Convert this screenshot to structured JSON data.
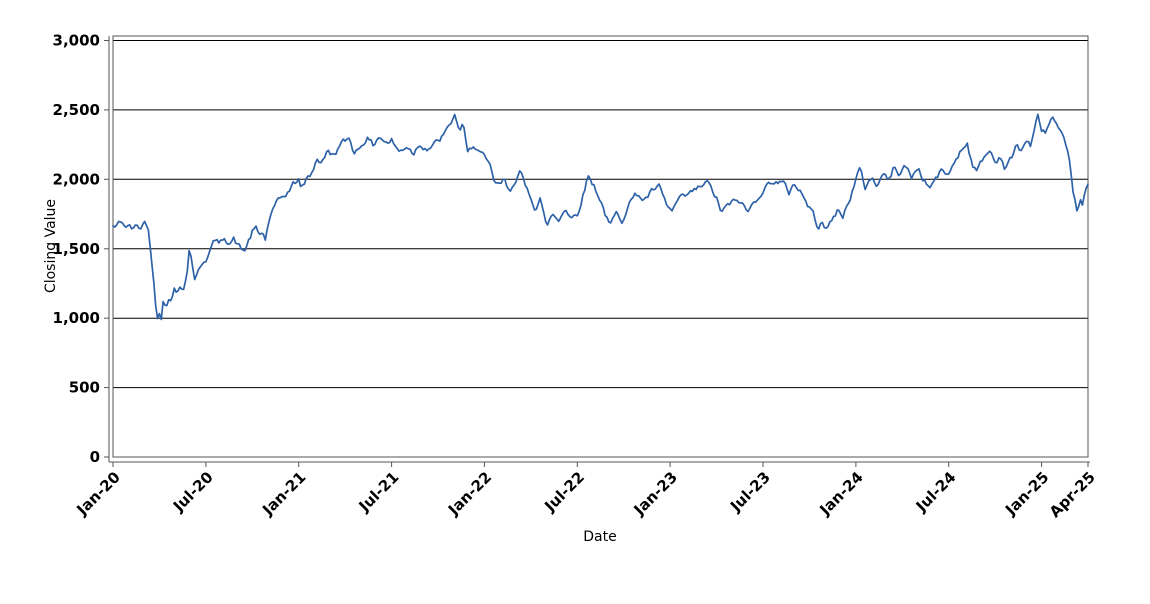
{
  "chart_data": {
    "type": "line",
    "title": "",
    "xlabel": "Date",
    "ylabel": "Closing Value",
    "legend": "none",
    "grid": "horizontal-only",
    "x_unit": "months-since-Jan-2020",
    "x_range": [
      0,
      63
    ],
    "ylim": [
      0,
      3050
    ],
    "y_ticks": [
      0,
      500,
      1000,
      1500,
      2000,
      2500,
      3000
    ],
    "y_tick_labels": [
      "0",
      "500",
      "1,000",
      "1,500",
      "2,000",
      "2,500",
      "3,000"
    ],
    "x_ticks": [
      {
        "label": "Jan-20",
        "t": 0
      },
      {
        "label": "Jul-20",
        "t": 6
      },
      {
        "label": "Jan-21",
        "t": 12
      },
      {
        "label": "Jul-21",
        "t": 18
      },
      {
        "label": "Jan-22",
        "t": 24
      },
      {
        "label": "Jul-22",
        "t": 30
      },
      {
        "label": "Jan-23",
        "t": 36
      },
      {
        "label": "Jul-23",
        "t": 42
      },
      {
        "label": "Jan-24",
        "t": 48
      },
      {
        "label": "Jul-24",
        "t": 54
      },
      {
        "label": "Jan-25",
        "t": 60
      },
      {
        "label": "Apr-25",
        "t": 63
      }
    ],
    "colors": {
      "line": "#2e62a8",
      "grid": "#000000",
      "axis": "#555555",
      "text": "#000000",
      "background": "#ffffff"
    },
    "series": [
      {
        "name": "Closing Value",
        "color": "#2e62a8",
        "anchors": [
          [
            0.0,
            1665
          ],
          [
            0.2,
            1650
          ],
          [
            0.45,
            1702
          ],
          [
            0.7,
            1680
          ],
          [
            0.9,
            1645
          ],
          [
            1.1,
            1668
          ],
          [
            1.3,
            1635
          ],
          [
            1.55,
            1670
          ],
          [
            1.8,
            1650
          ],
          [
            2.05,
            1692
          ],
          [
            2.25,
            1680
          ],
          [
            2.4,
            1510
          ],
          [
            2.55,
            1366
          ],
          [
            2.7,
            1180
          ],
          [
            2.85,
            1005
          ],
          [
            3.0,
            1060
          ],
          [
            3.1,
            1000
          ],
          [
            3.25,
            1130
          ],
          [
            3.4,
            1080
          ],
          [
            3.6,
            1155
          ],
          [
            3.75,
            1115
          ],
          [
            3.95,
            1205
          ],
          [
            4.15,
            1180
          ],
          [
            4.35,
            1255
          ],
          [
            4.55,
            1215
          ],
          [
            4.75,
            1295
          ],
          [
            4.95,
            1520
          ],
          [
            5.1,
            1415
          ],
          [
            5.3,
            1260
          ],
          [
            5.6,
            1370
          ],
          [
            5.85,
            1415
          ],
          [
            6.1,
            1440
          ],
          [
            6.35,
            1505
          ],
          [
            6.6,
            1565
          ],
          [
            6.9,
            1530
          ],
          [
            7.2,
            1590
          ],
          [
            7.5,
            1542
          ],
          [
            7.8,
            1568
          ],
          [
            8.1,
            1522
          ],
          [
            8.45,
            1476
          ],
          [
            8.75,
            1552
          ],
          [
            9.05,
            1630
          ],
          [
            9.25,
            1642
          ],
          [
            9.45,
            1592
          ],
          [
            9.65,
            1622
          ],
          [
            9.85,
            1565
          ],
          [
            10.15,
            1742
          ],
          [
            10.45,
            1800
          ],
          [
            10.75,
            1850
          ],
          [
            11.05,
            1882
          ],
          [
            11.4,
            1922
          ],
          [
            11.7,
            1972
          ],
          [
            12.0,
            1992
          ],
          [
            12.2,
            1935
          ],
          [
            12.5,
            2002
          ],
          [
            12.75,
            2030
          ],
          [
            13.2,
            2152
          ],
          [
            13.5,
            2115
          ],
          [
            13.9,
            2210
          ],
          [
            14.2,
            2172
          ],
          [
            14.8,
            2258
          ],
          [
            15.3,
            2300
          ],
          [
            15.6,
            2188
          ],
          [
            15.9,
            2230
          ],
          [
            16.4,
            2300
          ],
          [
            16.8,
            2245
          ],
          [
            17.2,
            2315
          ],
          [
            17.7,
            2258
          ],
          [
            18.0,
            2282
          ],
          [
            18.5,
            2195
          ],
          [
            19.0,
            2245
          ],
          [
            19.4,
            2188
          ],
          [
            19.8,
            2258
          ],
          [
            20.3,
            2222
          ],
          [
            20.7,
            2245
          ],
          [
            21.1,
            2282
          ],
          [
            21.6,
            2352
          ],
          [
            21.9,
            2425
          ],
          [
            22.1,
            2458
          ],
          [
            22.4,
            2352
          ],
          [
            22.65,
            2390
          ],
          [
            22.9,
            2172
          ],
          [
            23.3,
            2258
          ],
          [
            23.7,
            2195
          ],
          [
            24.0,
            2152
          ],
          [
            24.35,
            2088
          ],
          [
            24.6,
            1992
          ],
          [
            24.9,
            1952
          ],
          [
            25.3,
            1992
          ],
          [
            25.6,
            1902
          ],
          [
            26.0,
            2002
          ],
          [
            26.3,
            2060
          ],
          [
            26.6,
            1952
          ],
          [
            26.9,
            1898
          ],
          [
            27.3,
            1792
          ],
          [
            27.6,
            1870
          ],
          [
            28.0,
            1655
          ],
          [
            28.4,
            1752
          ],
          [
            28.8,
            1702
          ],
          [
            29.2,
            1800
          ],
          [
            29.6,
            1722
          ],
          [
            30.0,
            1752
          ],
          [
            30.4,
            1900
          ],
          [
            30.7,
            2028
          ],
          [
            31.1,
            1952
          ],
          [
            31.5,
            1852
          ],
          [
            32.1,
            1658
          ],
          [
            32.5,
            1752
          ],
          [
            32.9,
            1702
          ],
          [
            33.3,
            1832
          ],
          [
            33.9,
            1898
          ],
          [
            34.3,
            1850
          ],
          [
            34.9,
            1920
          ],
          [
            35.3,
            1942
          ],
          [
            35.7,
            1828
          ],
          [
            36.1,
            1762
          ],
          [
            36.5,
            1848
          ],
          [
            37.1,
            1882
          ],
          [
            37.9,
            1942
          ],
          [
            38.4,
            1978
          ],
          [
            38.8,
            1902
          ],
          [
            39.05,
            1848
          ],
          [
            39.3,
            1762
          ],
          [
            39.9,
            1828
          ],
          [
            40.5,
            1848
          ],
          [
            41.0,
            1762
          ],
          [
            41.8,
            1898
          ],
          [
            42.6,
            1992
          ],
          [
            43.3,
            1970
          ],
          [
            43.7,
            1898
          ],
          [
            43.95,
            1978
          ],
          [
            44.4,
            1920
          ],
          [
            44.8,
            1832
          ],
          [
            45.2,
            1762
          ],
          [
            45.55,
            1658
          ],
          [
            45.8,
            1722
          ],
          [
            46.1,
            1633
          ],
          [
            46.45,
            1702
          ],
          [
            46.8,
            1778
          ],
          [
            47.15,
            1728
          ],
          [
            47.55,
            1848
          ],
          [
            47.9,
            1956
          ],
          [
            48.25,
            2078
          ],
          [
            48.6,
            1942
          ],
          [
            49.0,
            2015
          ],
          [
            49.4,
            1956
          ],
          [
            49.8,
            2050
          ],
          [
            50.1,
            1978
          ],
          [
            50.45,
            2086
          ],
          [
            50.8,
            2043
          ],
          [
            51.2,
            2100
          ],
          [
            51.6,
            2015
          ],
          [
            52.0,
            2086
          ],
          [
            52.4,
            1992
          ],
          [
            52.8,
            1942
          ],
          [
            53.2,
            2015
          ],
          [
            53.6,
            2064
          ],
          [
            54.0,
            2030
          ],
          [
            54.3,
            2115
          ],
          [
            54.65,
            2186
          ],
          [
            55.2,
            2266
          ],
          [
            55.5,
            2121
          ],
          [
            55.8,
            2050
          ],
          [
            56.2,
            2150
          ],
          [
            56.7,
            2208
          ],
          [
            57.0,
            2121
          ],
          [
            57.35,
            2172
          ],
          [
            57.6,
            2086
          ],
          [
            58.1,
            2158
          ],
          [
            58.4,
            2245
          ],
          [
            58.7,
            2210
          ],
          [
            59.0,
            2282
          ],
          [
            59.3,
            2245
          ],
          [
            59.75,
            2448
          ],
          [
            59.95,
            2366
          ],
          [
            60.2,
            2337
          ],
          [
            60.7,
            2448
          ],
          [
            61.1,
            2352
          ],
          [
            61.4,
            2282
          ],
          [
            61.65,
            2186
          ],
          [
            61.85,
            2086
          ],
          [
            62.1,
            1870
          ],
          [
            62.3,
            1777
          ],
          [
            62.5,
            1848
          ],
          [
            62.65,
            1798
          ],
          [
            62.85,
            1925
          ],
          [
            63.0,
            1965
          ]
        ]
      }
    ],
    "render_hints": {
      "noise_amplitude": 20,
      "noise_step_months": 0.12,
      "noise_seed": 42
    }
  }
}
